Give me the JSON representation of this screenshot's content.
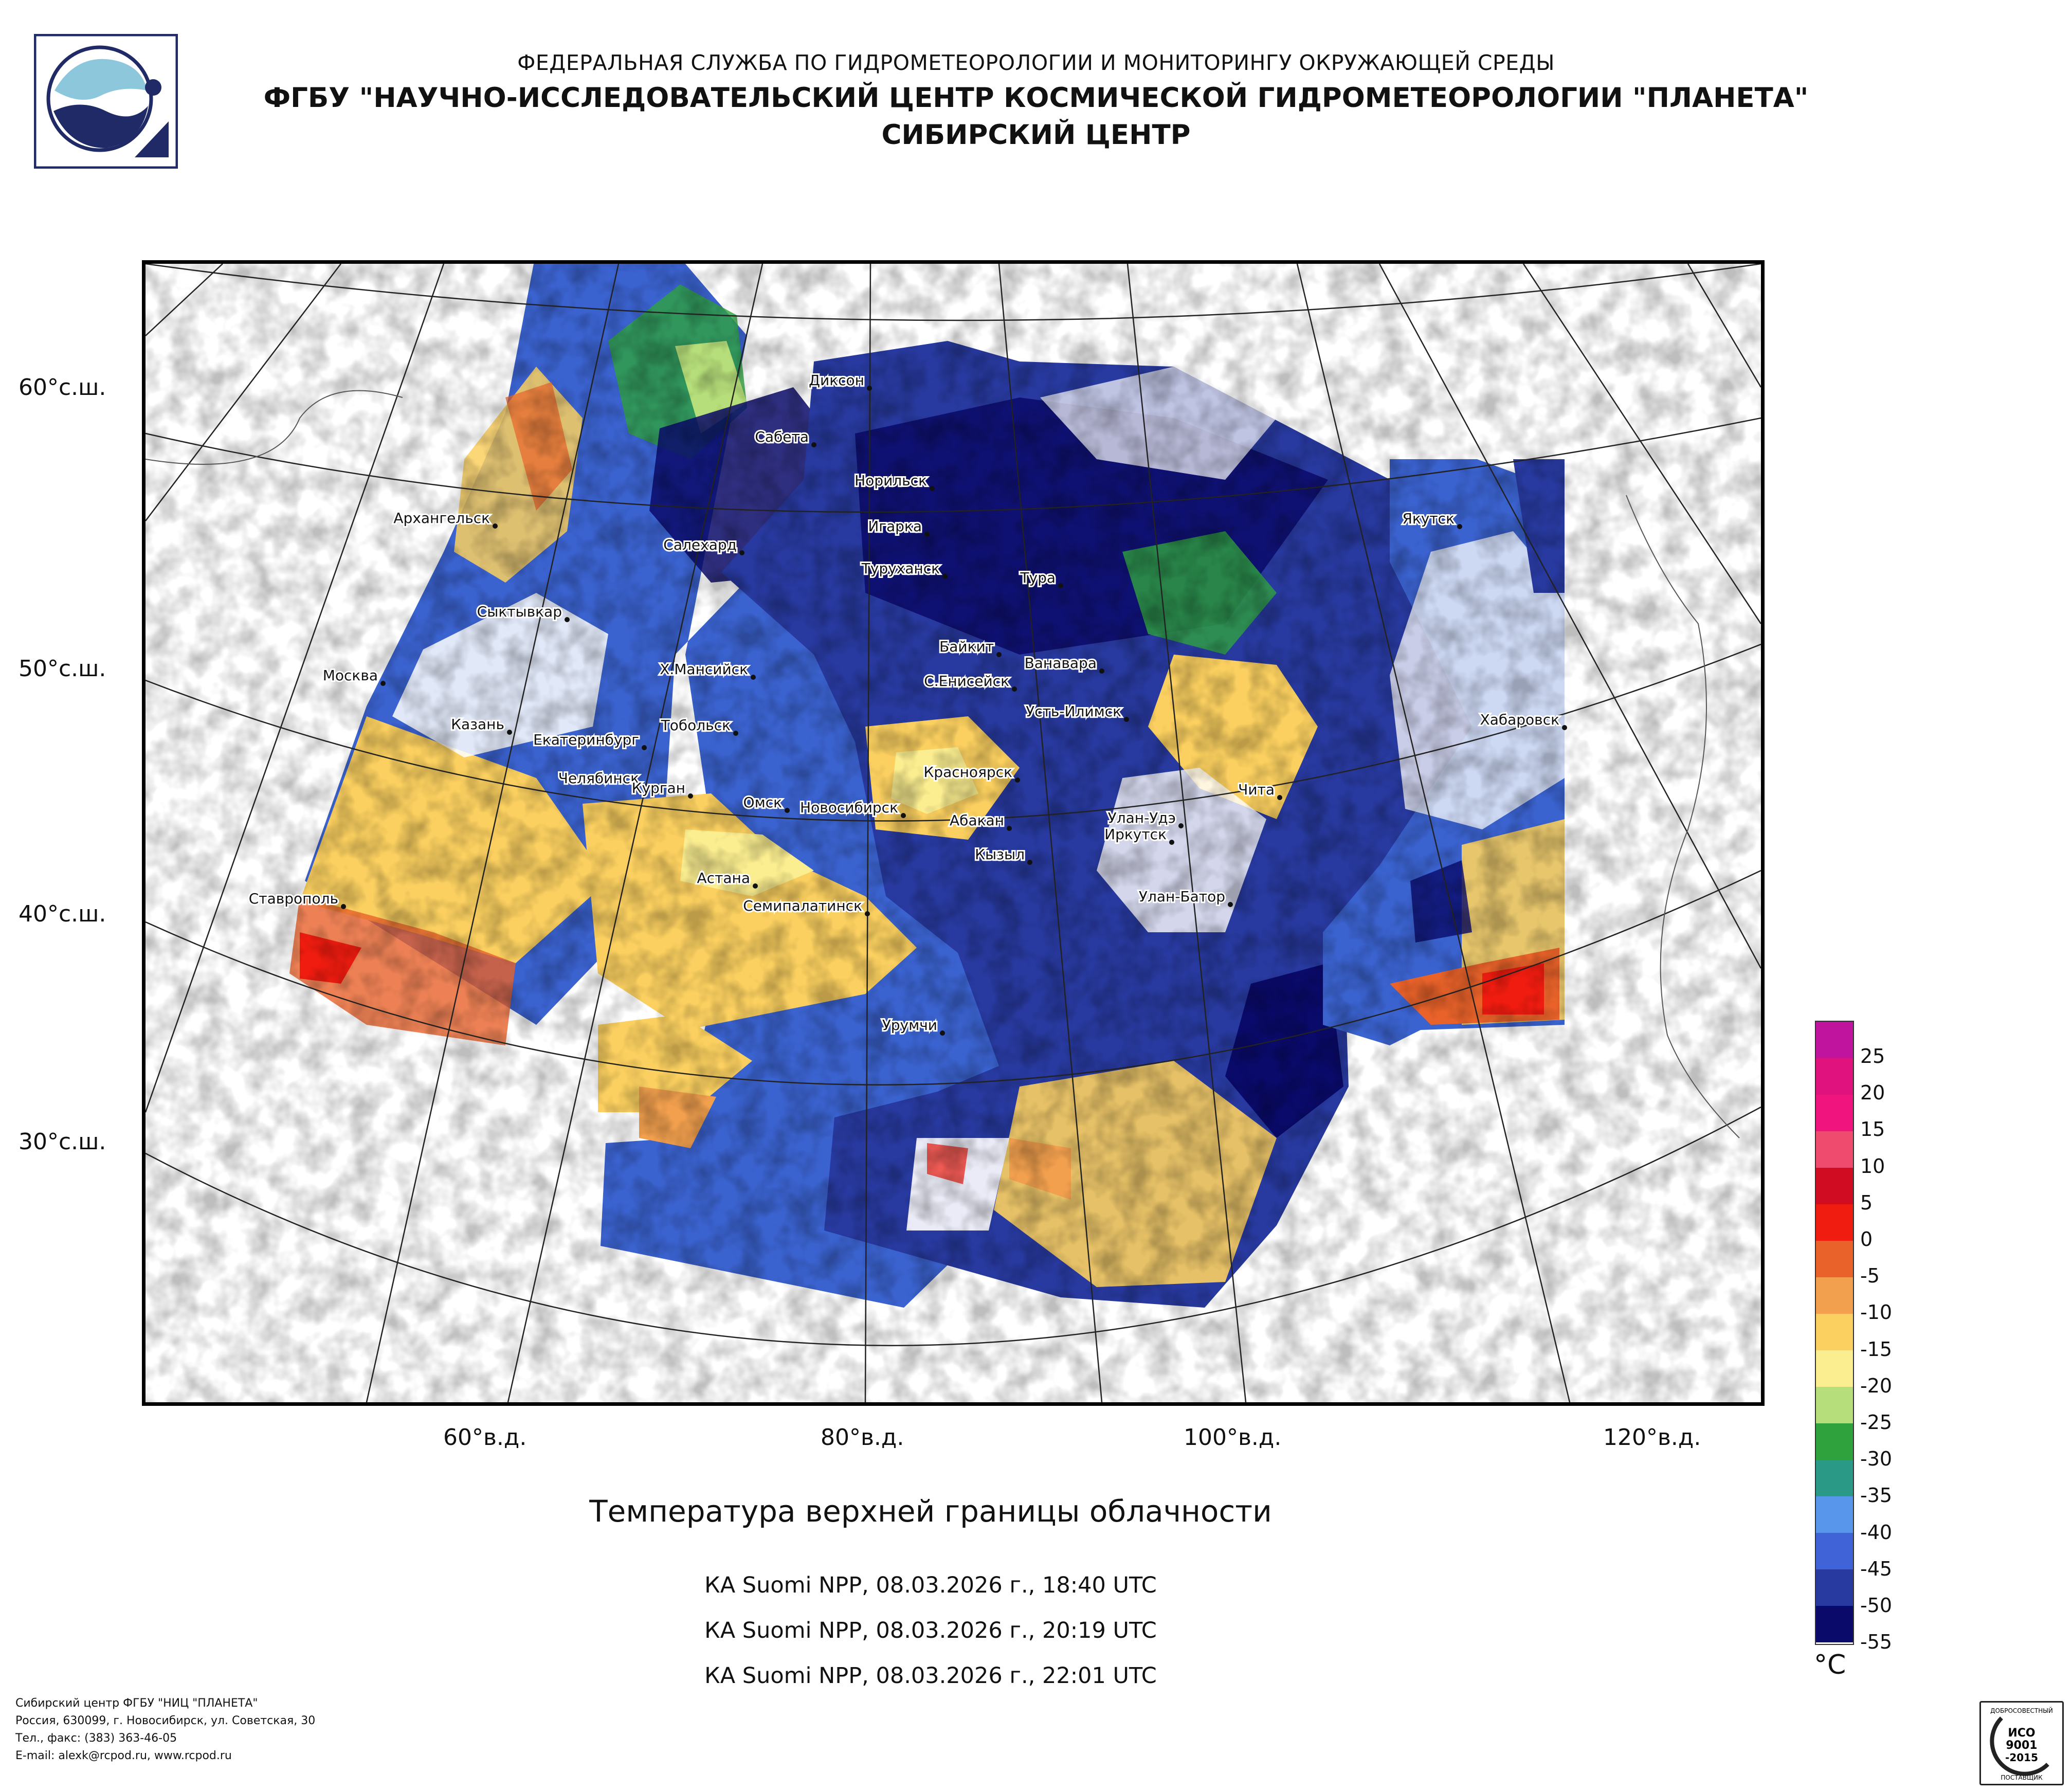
{
  "header": {
    "line1": "ФЕДЕРАЛЬНАЯ СЛУЖБА ПО ГИДРОМЕТЕОРОЛОГИИ И МОНИТОРИНГУ ОКРУЖАЮЩЕЙ СРЕДЫ",
    "line2": "ФГБУ \"НАУЧНО-ИССЛЕДОВАТЕЛЬСКИЙ ЦЕНТР КОСМИЧЕСКОЙ ГИДРОМЕТЕОРОЛОГИИ \"ПЛАНЕТА\"",
    "line3": "СИБИРСКИЙ ЦЕНТР"
  },
  "map": {
    "lat_labels": [
      "60°с.ш.",
      "50°с.ш.",
      "40°с.ш.",
      "30°с.ш."
    ],
    "lon_labels": [
      "60°в.д.",
      "80°в.д.",
      "100°в.д.",
      "120°в.д."
    ],
    "cities": [
      "Диксон",
      "Сабета",
      "Норильск",
      "Архангельск",
      "Салехард",
      "Игарка",
      "Туруханск",
      "Якутск",
      "Тура",
      "Сыктывкар",
      "Байкит",
      "Ванавара",
      "Москва",
      "Х.Мансийск",
      "С.Енисейск",
      "Усть-Илимск",
      "Хабаровск",
      "Казань",
      "Екатеринбург",
      "Тобольск",
      "Красноярск",
      "Челябинск",
      "Курган",
      "Омск",
      "Новосибирск",
      "Абакан",
      "Чита",
      "Улан-Удэ",
      "Иркутск",
      "Кызыл",
      "Ставрополь",
      "Астана",
      "Семипалатинск",
      "Улан-Батор",
      "Урумчи"
    ]
  },
  "title": "Температура верхней границы облачности",
  "passes": [
    "КА Suomi NPP, 08.03.2026 г., 18:40 UTC",
    "КА Suomi NPP, 08.03.2026 г., 20:19 UTC",
    "КА Suomi NPP, 08.03.2026 г., 22:01 UTC"
  ],
  "legend": {
    "unit": "°C",
    "labels": [
      "25",
      "20",
      "15",
      "10",
      "5",
      "0",
      "-5",
      "-10",
      "-15",
      "-20",
      "-25",
      "-30",
      "-35",
      "-40",
      "-45",
      "-50",
      "-55"
    ],
    "colors": [
      "#c0139e",
      "#e0127e",
      "#f0157e",
      "#ee4b6e",
      "#d00c22",
      "#f01c10",
      "#e8622a",
      "#f2a04e",
      "#fbd060",
      "#fbee90",
      "#b6de7a",
      "#2fa23e",
      "#2a9a86",
      "#5896ec",
      "#4064d8",
      "#283aa0",
      "#0a0a6a"
    ]
  },
  "footer": {
    "line1": "Сибирский центр ФГБУ \"НИЦ \"ПЛАНЕТА\"",
    "line2": "Россия, 630099, г. Новосибирск, ул. Советская, 30",
    "line3": "Тел., факс: (383) 363-46-05",
    "line4": "E-mail: alexk@rcpod.ru, www.rcpod.ru"
  },
  "certificate": {
    "top": "ДОБРОСОВЕСТНЫЙ",
    "line1": "ИСО",
    "line2": "9001",
    "line3": "-2015",
    "bottom": "ПОСТАВЩИК"
  }
}
